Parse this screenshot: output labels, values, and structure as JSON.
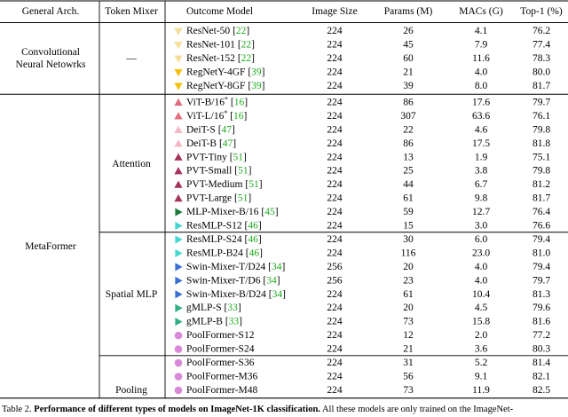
{
  "header": {
    "arch": "General Arch.",
    "mixer": "Token Mixer",
    "model": "Outcome Model",
    "image_size": "Image Size",
    "params": "Params (M)",
    "macs": "MACs (G)",
    "top1": "Top-1 (%)"
  },
  "groups": [
    {
      "arch_lines": [
        "Convolutional",
        "Neural Netowrks"
      ],
      "mixer": "—",
      "arch_span": "conv"
    },
    {
      "arch_lines": [
        "MetaFormer"
      ],
      "mixer": "",
      "arch_span": "meta"
    }
  ],
  "mixers": [
    {
      "label": "Attention",
      "from": 5,
      "to": 14
    },
    {
      "label": "Spatial MLP",
      "from": 15,
      "to": 23
    },
    {
      "label": "Pooling",
      "from": 24,
      "to": 28
    }
  ],
  "rows": [
    {
      "model": "ResNet-50",
      "cite": "22",
      "size": "224",
      "params": "26",
      "macs": "4.1",
      "top1": "76.2",
      "marker": "tri-down",
      "color": "#f5dd9a"
    },
    {
      "model": "ResNet-101",
      "cite": "22",
      "size": "224",
      "params": "45",
      "macs": "7.9",
      "top1": "77.4",
      "marker": "tri-down",
      "color": "#f5dd9a"
    },
    {
      "model": "ResNet-152",
      "cite": "22",
      "size": "224",
      "params": "60",
      "macs": "11.6",
      "top1": "78.3",
      "marker": "tri-down",
      "color": "#f5dd9a"
    },
    {
      "model": "RegNetY-4GF",
      "cite": "39",
      "size": "224",
      "params": "21",
      "macs": "4.0",
      "top1": "80.0",
      "marker": "tri-down",
      "color": "#f2c20f"
    },
    {
      "model": "RegNetY-8GF",
      "cite": "39",
      "size": "224",
      "params": "39",
      "macs": "8.0",
      "top1": "81.7",
      "marker": "tri-down",
      "color": "#f2c20f"
    },
    {
      "model": "ViT-B/16",
      "sup": "*",
      "cite": "16",
      "size": "224",
      "params": "86",
      "macs": "17.6",
      "top1": "79.7",
      "marker": "tri-up",
      "color": "#e36b7d"
    },
    {
      "model": "ViT-L/16",
      "sup": "*",
      "cite": "16",
      "size": "224",
      "params": "307",
      "macs": "63.6",
      "top1": "76.1",
      "marker": "tri-up",
      "color": "#e36b7d"
    },
    {
      "model": "DeiT-S",
      "cite": "47",
      "size": "224",
      "params": "22",
      "macs": "4.6",
      "top1": "79.8",
      "marker": "tri-up",
      "color": "#f4b7c4"
    },
    {
      "model": "DeiT-B",
      "cite": "47",
      "size": "224",
      "params": "86",
      "macs": "17.5",
      "top1": "81.8",
      "marker": "tri-up",
      "color": "#f4b7c4"
    },
    {
      "model": "PVT-Tiny",
      "cite": "51",
      "size": "224",
      "params": "13",
      "macs": "1.9",
      "top1": "75.1",
      "marker": "tri-up",
      "color": "#a4335d"
    },
    {
      "model": "PVT-Small",
      "cite": "51",
      "size": "224",
      "params": "25",
      "macs": "3.8",
      "top1": "79.8",
      "marker": "tri-up",
      "color": "#a4335d"
    },
    {
      "model": "PVT-Medium",
      "cite": "51",
      "size": "224",
      "params": "44",
      "macs": "6.7",
      "top1": "81.2",
      "marker": "tri-up",
      "color": "#a4335d"
    },
    {
      "model": "PVT-Large",
      "cite": "51",
      "size": "224",
      "params": "61",
      "macs": "9.8",
      "top1": "81.7",
      "marker": "tri-up",
      "color": "#a4335d"
    },
    {
      "model": "MLP-Mixer-B/16",
      "cite": "45",
      "size": "224",
      "params": "59",
      "macs": "12.7",
      "top1": "76.4",
      "marker": "tri-right",
      "color": "#1d7a3a"
    },
    {
      "model": "ResMLP-S12",
      "cite": "46",
      "size": "224",
      "params": "15",
      "macs": "3.0",
      "top1": "76.6",
      "marker": "tri-right",
      "color": "#44d6d0"
    },
    {
      "model": "ResMLP-S24",
      "cite": "46",
      "size": "224",
      "params": "30",
      "macs": "6.0",
      "top1": "79.4",
      "marker": "tri-right",
      "color": "#44d6d0"
    },
    {
      "model": "ResMLP-B24",
      "cite": "46",
      "size": "224",
      "params": "116",
      "macs": "23.0",
      "top1": "81.0",
      "marker": "tri-right",
      "color": "#44d6d0"
    },
    {
      "model": "Swin-Mixer-T/D24",
      "cite": "34",
      "size": "256",
      "params": "20",
      "macs": "4.0",
      "top1": "79.4",
      "marker": "tri-right",
      "color": "#3b6fd4"
    },
    {
      "model": "Swin-Mixer-T/D6",
      "cite": "34",
      "size": "256",
      "params": "23",
      "macs": "4.0",
      "top1": "79.7",
      "marker": "tri-right",
      "color": "#3b6fd4"
    },
    {
      "model": "Swin-Mixer-B/D24",
      "cite": "34",
      "size": "224",
      "params": "61",
      "macs": "10.4",
      "top1": "81.3",
      "marker": "tri-right",
      "color": "#3b6fd4"
    },
    {
      "model": "gMLP-S",
      "cite": "33",
      "size": "224",
      "params": "20",
      "macs": "4.5",
      "top1": "79.6",
      "marker": "tri-right",
      "color": "#2fae84"
    },
    {
      "model": "gMLP-B",
      "cite": "33",
      "size": "224",
      "params": "73",
      "macs": "15.8",
      "top1": "81.6",
      "marker": "tri-right",
      "color": "#2fae84"
    },
    {
      "model": "PoolFormer-S12",
      "cite": "",
      "size": "224",
      "params": "12",
      "macs": "2.0",
      "top1": "77.2",
      "marker": "circle",
      "color": "#d88ad8"
    },
    {
      "model": "PoolFormer-S24",
      "cite": "",
      "size": "224",
      "params": "21",
      "macs": "3.6",
      "top1": "80.3",
      "marker": "circle",
      "color": "#d88ad8"
    },
    {
      "model": "PoolFormer-S36",
      "cite": "",
      "size": "224",
      "params": "31",
      "macs": "5.2",
      "top1": "81.4",
      "marker": "circle",
      "color": "#d88ad8"
    },
    {
      "model": "PoolFormer-M36",
      "cite": "",
      "size": "224",
      "params": "56",
      "macs": "9.1",
      "top1": "82.1",
      "marker": "circle",
      "color": "#d88ad8"
    },
    {
      "model": "PoolFormer-M48",
      "cite": "",
      "size": "224",
      "params": "73",
      "macs": "11.9",
      "top1": "82.5",
      "marker": "circle",
      "color": "#d88ad8"
    }
  ],
  "caption": {
    "label": "Table 2.",
    "bold": "Performance of different types of models on ImageNet-1K classification.",
    "rest": "All these models are only trained on the ImageNet-"
  }
}
